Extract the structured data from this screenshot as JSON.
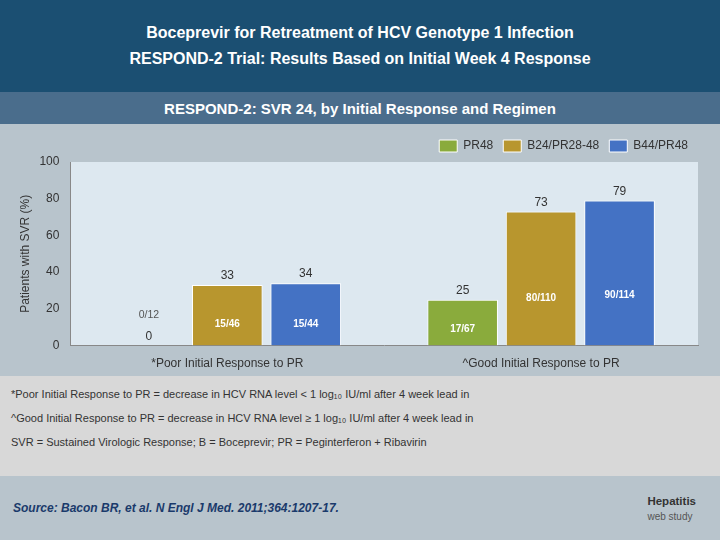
{
  "chart_data": {
    "type": "bar",
    "title": [
      "Boceprevir for Retreatment of HCV Genotype 1 Infection",
      "RESPOND-2 Trial: Results Based on Initial Week 4 Response"
    ],
    "subtitle": "RESPOND-2: SVR 24, by Initial Response and Regimen",
    "categories": [
      "*Poor Initial Response to PR",
      "^Good Initial Response to PR"
    ],
    "series": [
      {
        "name": "PR48",
        "color": "#8aab3c",
        "values": [
          0,
          25
        ],
        "fractions": [
          "0/12",
          "17/67"
        ]
      },
      {
        "name": "B24/PR28-48",
        "color": "#b8962e",
        "values": [
          33,
          73
        ],
        "fractions": [
          "15/46",
          "80/110"
        ]
      },
      {
        "name": "B44/PR48",
        "color": "#4472c4",
        "values": [
          34,
          79
        ],
        "fractions": [
          "15/44",
          "90/114"
        ]
      }
    ],
    "ylabel": "Patients with SVR (%)",
    "ylim": [
      0,
      100
    ],
    "yticks": [
      0,
      20,
      40,
      60,
      80,
      100
    ],
    "grid": false,
    "legend": "upper right",
    "data_labels": true,
    "footnotes": [
      "*Poor Initial Response to PR = decrease in HCV RNA level < 1 log₁₀ IU/ml after 4 week lead in",
      "^Good Initial Response to PR = decrease in HCV RNA level ≥ 1 log₁₀ IU/ml after 4 week lead in",
      "SVR = Sustained Virologic Response; B = Boceprevir;  PR = Peginterferon + Ribavirin"
    ],
    "source": "Source: Bacon BR, et al.  N Engl J Med.  2011;364:1207-17.",
    "logo": [
      "Hepatitis",
      "web study"
    ]
  }
}
